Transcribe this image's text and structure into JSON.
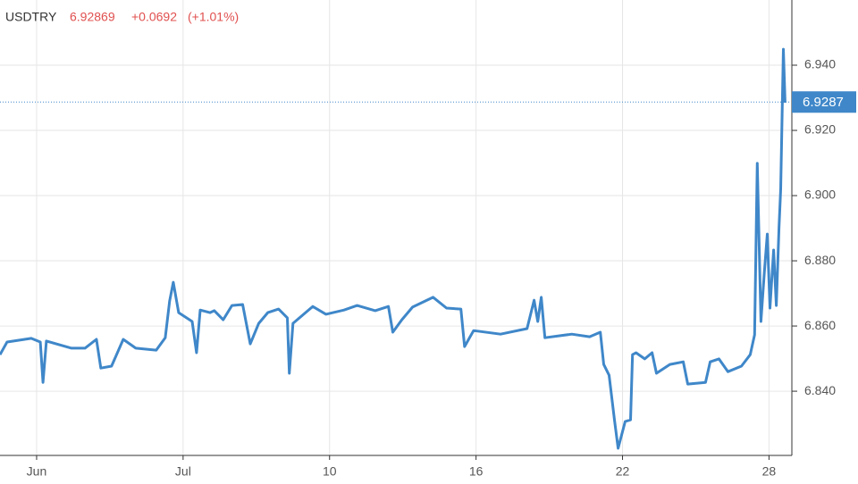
{
  "chart_data": {
    "type": "line",
    "header": {
      "symbol": "USDTRY",
      "last": "6.92869",
      "change": "+0.0692",
      "change_pct": "(+1.01%)"
    },
    "x": [
      -1.5,
      -1.21,
      -0.22,
      0.15,
      0.26,
      0.4,
      1.43,
      1.98,
      2.45,
      2.63,
      3.07,
      3.55,
      4.06,
      4.9,
      5.27,
      5.45,
      5.6,
      5.82,
      6.37,
      6.55,
      6.7,
      7.1,
      7.28,
      7.64,
      8.0,
      8.44,
      8.75,
      9.1,
      9.47,
      9.91,
      10.27,
      10.35,
      10.5,
      10.94,
      11.31,
      11.85,
      12.59,
      13.13,
      13.87,
      14.41,
      14.59,
      14.96,
      15.4,
      16.24,
      16.79,
      17.38,
      17.53,
      17.9,
      19.0,
      20.09,
      20.38,
      20.53,
      20.67,
      20.82,
      21.92,
      22.65,
      23.09,
      23.23,
      23.45,
      23.67,
      23.82,
      24.11,
      24.33,
      24.41,
      24.55,
      24.91,
      25.21,
      25.39,
      25.94,
      26.49,
      26.67,
      27.4,
      27.59,
      27.95,
      28.32,
      28.87,
      29.23,
      29.41,
      29.52,
      29.67,
      29.81,
      29.93,
      30.04,
      30.19,
      30.3,
      30.41,
      30.48,
      30.59,
      30.66
    ],
    "values": [
      6.8512,
      6.8551,
      6.8562,
      6.8551,
      6.8427,
      6.8554,
      6.8532,
      6.8532,
      6.8559,
      6.8471,
      6.8477,
      6.8559,
      6.8532,
      6.8526,
      6.8564,
      6.8677,
      6.8734,
      6.8641,
      6.8614,
      6.8518,
      6.8649,
      6.8641,
      6.8647,
      6.8619,
      6.8663,
      6.8666,
      6.8545,
      6.8608,
      6.8641,
      6.8652,
      6.8625,
      6.8455,
      6.8608,
      6.8636,
      6.866,
      6.8636,
      6.8649,
      6.8663,
      6.8647,
      6.866,
      6.8581,
      6.8619,
      6.8658,
      6.8688,
      6.8655,
      6.8652,
      6.8537,
      6.8586,
      6.8575,
      6.8592,
      6.8679,
      6.8614,
      6.8688,
      6.8564,
      6.8575,
      6.8567,
      6.8581,
      6.8482,
      6.8449,
      6.8312,
      6.8225,
      6.8307,
      6.8312,
      6.8512,
      6.8518,
      6.8499,
      6.8518,
      6.8455,
      6.8482,
      6.849,
      6.8422,
      6.8427,
      6.849,
      6.8499,
      6.846,
      6.8477,
      6.8512,
      6.8573,
      6.9099,
      6.8614,
      6.8764,
      6.8882,
      6.8655,
      6.8833,
      6.8663,
      6.8901,
      6.9019,
      6.9449,
      6.9285
    ],
    "color": "#3f87c9",
    "price_line": 6.9287,
    "xlim": [
      -1.5,
      30.9
    ],
    "ylim": [
      6.8203,
      6.96
    ],
    "xticks": [
      {
        "value": 0,
        "label": "Jun"
      },
      {
        "value": 6,
        "label": "Jul"
      },
      {
        "value": 12,
        "label": "10"
      },
      {
        "value": 18,
        "label": "16"
      },
      {
        "value": 24,
        "label": "22"
      },
      {
        "value": 30,
        "label": "28"
      }
    ],
    "yticks": [
      {
        "value": 6.84,
        "label": "6.840"
      },
      {
        "value": 6.86,
        "label": "6.860"
      },
      {
        "value": 6.88,
        "label": "6.880"
      },
      {
        "value": 6.9,
        "label": "6.900"
      },
      {
        "value": 6.92,
        "label": "6.920"
      },
      {
        "value": 6.94,
        "label": "6.940"
      }
    ],
    "grid": true
  }
}
